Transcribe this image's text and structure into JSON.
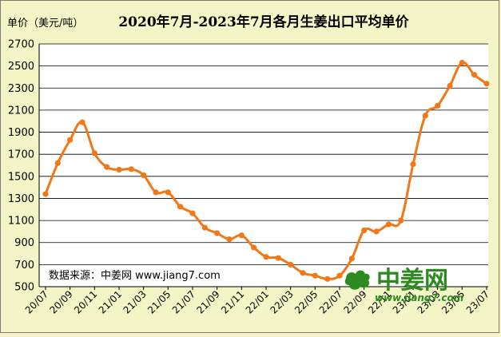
{
  "chart_data": {
    "type": "line",
    "title": "2020年7月-2023年7月各月生姜出口平均单价",
    "ylabel": "单价（美元/吨）",
    "xlabel": "",
    "ylim": [
      500,
      2700
    ],
    "yticks": [
      500,
      700,
      900,
      1100,
      1300,
      1500,
      1700,
      1900,
      2100,
      2300,
      2500,
      2700
    ],
    "grid": true,
    "x_tick_labels": [
      "20/07",
      "20/09",
      "20/11",
      "21/01",
      "21/03",
      "21/05",
      "21/07",
      "21/09",
      "21/11",
      "22/01",
      "22/03",
      "22/05",
      "22/07",
      "22/09",
      "22/11",
      "23/01",
      "23/03",
      "23/05",
      "23/07"
    ],
    "source_note": "数据来源：中姜网 www.jiang7.com",
    "series": [
      {
        "values": [
          1340,
          1620,
          1830,
          1990,
          1710,
          1585,
          1560,
          1565,
          1510,
          1355,
          1355,
          1225,
          1165,
          1035,
          985,
          930,
          965,
          855,
          770,
          760,
          700,
          625,
          600,
          570,
          600,
          755,
          1010,
          1000,
          1065,
          1100,
          1610,
          2050,
          2140,
          2320,
          2530,
          2420,
          2340
        ]
      }
    ],
    "x": [
      "20/07",
      "20/08",
      "20/09",
      "20/10",
      "20/11",
      "20/12",
      "21/01",
      "21/02",
      "21/03",
      "21/04",
      "21/05",
      "21/06",
      "21/07",
      "21/08",
      "21/09",
      "21/10",
      "21/11",
      "21/12",
      "22/01",
      "22/02",
      "22/03",
      "22/04",
      "22/05",
      "22/06",
      "22/07",
      "22/08",
      "22/09",
      "22/10",
      "22/11",
      "22/12",
      "23/01",
      "23/02",
      "23/03",
      "23/04",
      "23/05",
      "23/06",
      "23/07"
    ]
  },
  "colors": {
    "series": "#f07818",
    "background": "#f4f5c6",
    "logo": "#2c8a1e"
  },
  "logo": {
    "text": "中姜网",
    "url": "www.jiang7.com",
    "icon": "ginger-icon"
  }
}
